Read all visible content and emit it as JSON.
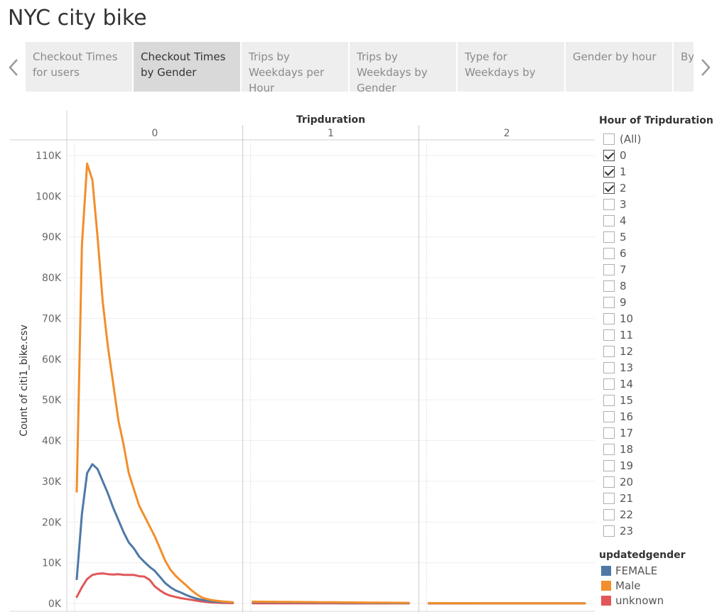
{
  "page": {
    "title": "NYC city bike"
  },
  "tabs": [
    {
      "label": "Checkout Times for users",
      "active": false
    },
    {
      "label": "Checkout Times by Gender",
      "active": true
    },
    {
      "label": "Trips by Weekdays per Hour",
      "active": false
    },
    {
      "label": "Trips by Weekdays by Gender",
      "active": false
    },
    {
      "label": "Type for Weekdays by",
      "active": false
    },
    {
      "label": "Gender by hour",
      "active": false
    },
    {
      "label": "By",
      "active": false
    }
  ],
  "colors": {
    "FEMALE": "#4e79a7",
    "Male": "#f28e2b",
    "unknown": "#e15759"
  },
  "chart_data": {
    "type": "line",
    "column_header": "Tripduration",
    "panels": [
      "0",
      "1",
      "2"
    ],
    "ylabel": "Count of citi1_bike.csv",
    "ylim": [
      0,
      110000
    ],
    "yticks": [
      "0K",
      "10K",
      "20K",
      "30K",
      "40K",
      "50K",
      "60K",
      "70K",
      "80K",
      "90K",
      "100K",
      "110K"
    ],
    "x_per_panel": [
      0,
      2,
      4,
      6,
      8,
      10,
      12,
      14,
      16,
      18,
      20,
      22,
      24,
      26,
      28,
      30,
      32,
      34,
      36,
      38,
      40,
      42,
      44,
      46,
      48,
      50,
      52,
      54,
      56,
      58,
      60
    ],
    "series": [
      {
        "name": "FEMALE",
        "values": [
          [
            6000,
            22000,
            32000,
            34200,
            33000,
            30000,
            27000,
            23500,
            20500,
            17500,
            15000,
            13500,
            11500,
            10200,
            9000,
            8000,
            6500,
            5000,
            4000,
            3200,
            2700,
            2100,
            1600,
            1200,
            900,
            700,
            500,
            420,
            350,
            300,
            250
          ],
          [
            350,
            340,
            330,
            320,
            310,
            300,
            290,
            280,
            270,
            260,
            250,
            240,
            230,
            220,
            210,
            200,
            190,
            180,
            170,
            160,
            150,
            140,
            130,
            120,
            110,
            100,
            95,
            90,
            85,
            80,
            75
          ],
          [
            60,
            58,
            56,
            55,
            54,
            53,
            52,
            51,
            50,
            49,
            48,
            47,
            46,
            45,
            44,
            43,
            42,
            41,
            40,
            39,
            38,
            37,
            36,
            35,
            34,
            33,
            32,
            31,
            30,
            29,
            28
          ]
        ]
      },
      {
        "name": "Male",
        "values": [
          [
            27500,
            88000,
            108000,
            104000,
            90000,
            74000,
            63000,
            54000,
            45000,
            39000,
            32000,
            28000,
            24000,
            21500,
            19000,
            16500,
            13500,
            10500,
            8300,
            6800,
            5600,
            4500,
            3300,
            2300,
            1500,
            1100,
            800,
            650,
            500,
            400,
            300
          ],
          [
            450,
            440,
            430,
            420,
            410,
            400,
            390,
            380,
            370,
            360,
            350,
            340,
            330,
            320,
            310,
            300,
            290,
            280,
            270,
            260,
            250,
            240,
            230,
            220,
            210,
            200,
            190,
            180,
            170,
            160,
            150
          ],
          [
            80,
            78,
            76,
            74,
            72,
            70,
            68,
            66,
            64,
            62,
            60,
            58,
            56,
            54,
            52,
            50,
            48,
            46,
            44,
            42,
            40,
            38,
            36,
            34,
            32,
            30,
            28,
            26,
            24,
            22,
            20
          ]
        ]
      },
      {
        "name": "unknown",
        "values": [
          [
            1600,
            4000,
            6000,
            7000,
            7300,
            7400,
            7200,
            7100,
            7200,
            7050,
            7000,
            7000,
            6700,
            6600,
            5800,
            4200,
            3200,
            2400,
            1900,
            1600,
            1300,
            1100,
            900,
            700,
            500,
            350,
            250,
            180,
            130,
            100,
            80
          ],
          [
            60,
            58,
            56,
            54,
            52,
            50,
            48,
            46,
            44,
            42,
            40,
            38,
            36,
            34,
            32,
            30,
            28,
            26,
            24,
            22,
            20,
            18,
            16,
            14,
            12,
            10,
            10,
            10,
            10,
            10,
            10
          ],
          [
            10,
            10,
            10,
            10,
            10,
            10,
            10,
            10,
            10,
            10,
            10,
            10,
            10,
            10,
            10,
            10,
            10,
            10,
            10,
            10,
            10,
            10,
            10,
            10,
            10,
            10,
            10,
            10,
            10,
            10,
            10
          ]
        ]
      }
    ],
    "grid": true
  },
  "filter": {
    "title": "Hour of Tripduration",
    "items": [
      {
        "label": "(All)",
        "checked": false
      },
      {
        "label": "0",
        "checked": true
      },
      {
        "label": "1",
        "checked": true
      },
      {
        "label": "2",
        "checked": true
      },
      {
        "label": "3",
        "checked": false
      },
      {
        "label": "4",
        "checked": false
      },
      {
        "label": "5",
        "checked": false
      },
      {
        "label": "6",
        "checked": false
      },
      {
        "label": "7",
        "checked": false
      },
      {
        "label": "8",
        "checked": false
      },
      {
        "label": "9",
        "checked": false
      },
      {
        "label": "10",
        "checked": false
      },
      {
        "label": "11",
        "checked": false
      },
      {
        "label": "12",
        "checked": false
      },
      {
        "label": "13",
        "checked": false
      },
      {
        "label": "14",
        "checked": false
      },
      {
        "label": "15",
        "checked": false
      },
      {
        "label": "16",
        "checked": false
      },
      {
        "label": "17",
        "checked": false
      },
      {
        "label": "18",
        "checked": false
      },
      {
        "label": "19",
        "checked": false
      },
      {
        "label": "20",
        "checked": false
      },
      {
        "label": "21",
        "checked": false
      },
      {
        "label": "22",
        "checked": false
      },
      {
        "label": "23",
        "checked": false
      }
    ]
  },
  "color_legend": {
    "title": "updatedgender",
    "items": [
      "FEMALE",
      "Male",
      "unknown"
    ]
  },
  "icons": {
    "prev": "chevron-left-icon",
    "next": "chevron-right-icon"
  }
}
